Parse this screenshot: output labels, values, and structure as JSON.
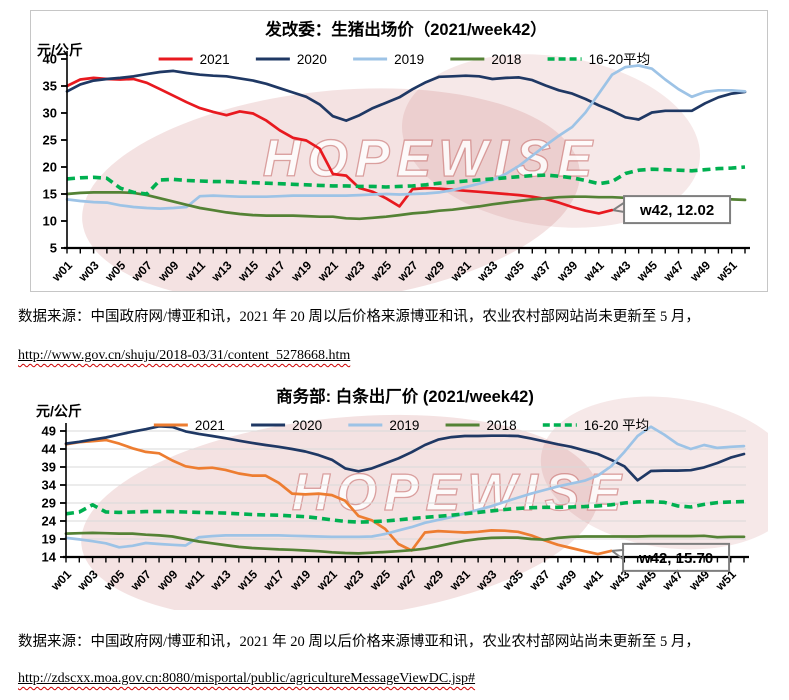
{
  "watermark_text": "HOPEWISE",
  "colors": {
    "red": "#e8191f",
    "navy": "#1f3864",
    "lightblue": "#9dc3e6",
    "olive": "#548235",
    "green": "#00b050",
    "orange": "#ed7d31",
    "grid": "#d9d9d9",
    "axis": "#000000",
    "callout_border": "#7f7f7f",
    "watermark": "#c15f5c",
    "wavy_underline": "#cc0000"
  },
  "notes": [
    {
      "source": "数据来源：中国政府网/博亚和讯，2021 年 20 周以后价格来源博亚和讯，农业农村部网站尚未更新至 5 月，",
      "url": "http://www.gov.cn/shuju/2018-03/31/content_5278668.htm"
    },
    {
      "source": "数据来源：中国政府网/博亚和讯，2021 年 20 周以后价格来源博亚和讯，农业农村部网站尚未更新至 5 月，",
      "url": "http://zdscxx.moa.gov.cn:8080/misportal/public/agricultureMessageViewDC.jsp#"
    }
  ],
  "chart_data": [
    {
      "type": "line",
      "title": "发改委：生猪出场价（2021/week42）",
      "unit_label": "元/公斤",
      "weeks": 52,
      "x_tick_labels": [
        "w01",
        "w03",
        "w05",
        "w07",
        "w09",
        "w11",
        "w13",
        "w15",
        "w17",
        "w19",
        "w21",
        "w23",
        "w25",
        "w27",
        "w29",
        "w31",
        "w33",
        "w35",
        "w37",
        "w39",
        "w41",
        "w43",
        "w45",
        "w47",
        "w49",
        "w51"
      ],
      "ylim": [
        5,
        40
      ],
      "y_ticks": [
        5,
        10,
        15,
        20,
        25,
        30,
        35,
        40
      ],
      "grid": false,
      "legend_position": "top",
      "annotation": {
        "text": "w42, 12.02",
        "week": 42,
        "value": 12.02
      },
      "series": [
        {
          "name": "2021",
          "color": "#e8191f",
          "dashed": false,
          "values": [
            35.0,
            36.2,
            36.5,
            36.3,
            36.2,
            36.3,
            35.6,
            34.4,
            33.2,
            32.0,
            30.9,
            30.2,
            29.6,
            30.3,
            29.9,
            28.6,
            26.8,
            25.4,
            24.9,
            23.4,
            18.7,
            18.4,
            16.1,
            15.4,
            14.2,
            12.7,
            15.9,
            16.1,
            16.0,
            15.8,
            15.6,
            15.4,
            15.2,
            15.0,
            14.8,
            14.5,
            14.1,
            13.4,
            12.6,
            11.9,
            11.4,
            12.02
          ]
        },
        {
          "name": "2020",
          "color": "#1f3864",
          "dashed": false,
          "values": [
            34.0,
            35.3,
            36.0,
            36.3,
            36.5,
            36.8,
            37.2,
            37.6,
            37.8,
            37.4,
            37.1,
            36.9,
            36.8,
            36.4,
            36.0,
            35.4,
            34.6,
            33.8,
            33.0,
            31.6,
            29.4,
            28.6,
            29.6,
            30.9,
            31.9,
            32.9,
            34.4,
            35.7,
            36.7,
            36.8,
            36.9,
            36.8,
            36.3,
            36.5,
            36.6,
            36.1,
            35.1,
            34.2,
            33.6,
            32.6,
            31.4,
            30.4,
            29.2,
            28.8,
            30.1,
            30.4,
            30.4,
            30.4,
            31.8,
            32.9,
            33.6,
            33.9
          ]
        },
        {
          "name": "2019",
          "color": "#9dc3e6",
          "dashed": false,
          "values": [
            14.0,
            13.7,
            13.5,
            13.4,
            12.9,
            12.6,
            12.4,
            12.3,
            12.4,
            12.6,
            14.6,
            14.7,
            14.6,
            14.5,
            14.5,
            14.5,
            14.6,
            14.7,
            14.7,
            14.7,
            14.7,
            14.7,
            14.8,
            14.9,
            15.0,
            14.9,
            15.0,
            15.1,
            15.3,
            15.7,
            16.3,
            16.9,
            17.6,
            18.7,
            20.2,
            22.1,
            24.0,
            25.8,
            27.4,
            30.1,
            33.6,
            37.1,
            38.5,
            38.8,
            38.2,
            36.2,
            34.4,
            33.0,
            33.9,
            34.2,
            34.2,
            34.0
          ]
        },
        {
          "name": "2018",
          "color": "#548235",
          "dashed": false,
          "values": [
            15.0,
            15.2,
            15.3,
            15.3,
            15.3,
            15.2,
            14.8,
            14.2,
            13.6,
            13.0,
            12.4,
            12.0,
            11.6,
            11.3,
            11.1,
            11.0,
            11.0,
            11.0,
            10.9,
            10.8,
            10.8,
            10.5,
            10.4,
            10.6,
            10.8,
            11.1,
            11.4,
            11.6,
            11.9,
            12.1,
            12.4,
            12.7,
            13.1,
            13.4,
            13.7,
            14.0,
            14.2,
            14.4,
            14.5,
            14.5,
            14.4,
            14.4,
            14.3,
            14.3,
            14.2,
            14.2,
            14.2,
            14.1,
            14.1,
            14.0,
            14.0,
            13.9
          ]
        },
        {
          "name": "16-20平均",
          "color": "#00b050",
          "dashed": true,
          "values": [
            17.8,
            18.0,
            18.1,
            17.9,
            16.1,
            15.3,
            15.0,
            17.6,
            17.7,
            17.5,
            17.4,
            17.3,
            17.3,
            17.2,
            17.1,
            17.0,
            16.9,
            16.8,
            16.7,
            16.6,
            16.5,
            16.5,
            16.4,
            16.4,
            16.3,
            16.4,
            16.5,
            16.7,
            17.0,
            17.2,
            17.4,
            17.6,
            17.8,
            18.0,
            18.2,
            18.4,
            18.5,
            18.3,
            18.0,
            17.5,
            16.9,
            17.3,
            18.8,
            19.4,
            19.6,
            19.5,
            19.4,
            19.3,
            19.5,
            19.7,
            19.8,
            20.0
          ]
        }
      ]
    },
    {
      "type": "line",
      "title": "商务部: 白条出厂价 (2021/week42)",
      "unit_label": "元/公斤",
      "weeks": 52,
      "x_tick_labels": [
        "w01",
        "w03",
        "w05",
        "w07",
        "w09",
        "w11",
        "w13",
        "w15",
        "w17",
        "w19",
        "w21",
        "w23",
        "w25",
        "w27",
        "w29",
        "w31",
        "w33",
        "w35",
        "w37",
        "w39",
        "w41",
        "w43",
        "w45",
        "w47",
        "w49",
        "w51"
      ],
      "ylim": [
        14,
        49
      ],
      "y_ticks": [
        14,
        19,
        24,
        29,
        34,
        39,
        44,
        49
      ],
      "grid": true,
      "legend_position": "top",
      "annotation": {
        "text": "w42, 15.70",
        "week": 42,
        "value": 15.7
      },
      "series": [
        {
          "name": "2021",
          "color": "#ed7d31",
          "dashed": false,
          "values": [
            45.3,
            45.9,
            46.2,
            46.5,
            45.5,
            44.2,
            43.2,
            42.8,
            40.8,
            39.2,
            38.6,
            38.8,
            38.2,
            37.2,
            36.6,
            36.6,
            34.6,
            31.6,
            31.4,
            31.6,
            31.2,
            29.6,
            25.4,
            24.2,
            21.8,
            17.6,
            15.8,
            20.8,
            21.2,
            21.0,
            20.8,
            21.0,
            21.4,
            21.3,
            21.0,
            20.0,
            18.6,
            17.4,
            16.5,
            15.6,
            14.8,
            15.7
          ]
        },
        {
          "name": "2020",
          "color": "#1f3864",
          "dashed": false,
          "values": [
            45.5,
            46.0,
            46.6,
            47.2,
            48.0,
            48.8,
            49.5,
            50.3,
            50.1,
            48.9,
            48.2,
            47.6,
            47.0,
            46.3,
            45.7,
            45.1,
            44.6,
            44.0,
            43.3,
            42.3,
            41.0,
            38.6,
            37.8,
            38.6,
            40.0,
            41.4,
            43.1,
            45.1,
            46.6,
            47.3,
            47.6,
            47.6,
            47.7,
            47.7,
            47.6,
            46.9,
            46.1,
            45.3,
            44.6,
            43.6,
            42.6,
            41.0,
            39.2,
            35.3,
            37.9,
            38.0,
            38.0,
            38.1,
            38.9,
            40.1,
            41.6,
            42.6
          ]
        },
        {
          "name": "2019",
          "color": "#9dc3e6",
          "dashed": false,
          "values": [
            19.3,
            18.9,
            18.4,
            17.8,
            16.7,
            17.1,
            17.9,
            17.6,
            17.4,
            17.2,
            19.5,
            19.8,
            20.0,
            20.0,
            20.0,
            20.0,
            20.0,
            19.9,
            19.8,
            19.7,
            19.6,
            19.6,
            19.6,
            19.7,
            20.4,
            21.4,
            22.3,
            23.5,
            24.3,
            25.1,
            26.1,
            27.1,
            28.1,
            29.3,
            30.5,
            31.6,
            32.6,
            33.6,
            34.4,
            35.2,
            36.6,
            39.2,
            43.2,
            47.6,
            50.2,
            48.0,
            45.4,
            44.0,
            45.1,
            44.3,
            44.6,
            44.8
          ]
        },
        {
          "name": "2018",
          "color": "#548235",
          "dashed": false,
          "values": [
            20.5,
            20.6,
            20.7,
            20.6,
            20.5,
            20.5,
            20.2,
            20.0,
            19.7,
            19.0,
            18.3,
            17.8,
            17.3,
            16.8,
            16.5,
            16.3,
            16.1,
            16.0,
            15.8,
            15.6,
            15.3,
            15.1,
            15.0,
            15.2,
            15.4,
            15.6,
            15.9,
            16.3,
            17.0,
            17.8,
            18.5,
            19.0,
            19.3,
            19.4,
            19.4,
            19.0,
            18.8,
            19.3,
            19.6,
            19.7,
            19.7,
            19.7,
            19.7,
            19.7,
            19.8,
            19.8,
            19.8,
            19.8,
            19.9,
            19.5,
            19.6,
            19.6
          ]
        },
        {
          "name": "16-20 平均",
          "color": "#00b050",
          "dashed": true,
          "values": [
            26.0,
            26.5,
            28.5,
            26.5,
            26.4,
            26.5,
            26.6,
            26.6,
            26.6,
            26.5,
            26.4,
            26.3,
            26.2,
            26.0,
            25.8,
            25.7,
            25.6,
            25.4,
            25.2,
            24.8,
            24.3,
            23.9,
            23.7,
            23.8,
            24.0,
            24.3,
            24.7,
            25.0,
            25.3,
            25.6,
            26.0,
            26.4,
            26.8,
            27.2,
            27.5,
            27.7,
            27.8,
            27.8,
            27.9,
            28.0,
            28.2,
            28.5,
            29.0,
            29.3,
            29.4,
            29.2,
            28.2,
            27.9,
            28.6,
            29.1,
            29.3,
            29.4
          ]
        }
      ]
    }
  ]
}
